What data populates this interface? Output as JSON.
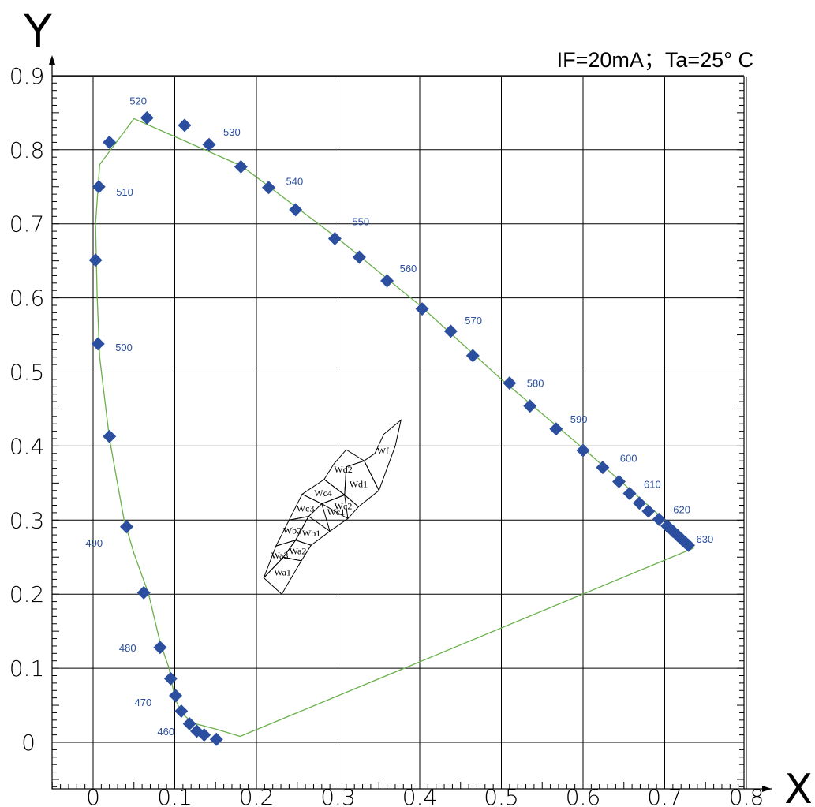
{
  "chart_data": {
    "type": "scatter",
    "title": "IF=20mA；Ta=25° C",
    "xlabel": "X",
    "ylabel": "Y",
    "xlim": [
      0,
      0.8
    ],
    "ylim": [
      0,
      0.9
    ],
    "x_ticks": [
      "0",
      "0.1",
      "0.2",
      "0.3",
      "0.4",
      "0.5",
      "0.6",
      "0.7",
      "0.8"
    ],
    "y_ticks": [
      "0",
      "0.1",
      "0.2",
      "0.3",
      "0.4",
      "0.5",
      "0.6",
      "0.7",
      "0.8",
      "0.9"
    ],
    "grid": true,
    "locus_points": [
      [
        0.151,
        0.004
      ],
      [
        0.136,
        0.01
      ],
      [
        0.127,
        0.015
      ],
      [
        0.118,
        0.025
      ],
      [
        0.108,
        0.042
      ],
      [
        0.101,
        0.063
      ],
      [
        0.095,
        0.086
      ],
      [
        0.082,
        0.128
      ],
      [
        0.062,
        0.202
      ],
      [
        0.041,
        0.291
      ],
      [
        0.02,
        0.413
      ],
      [
        0.006,
        0.538
      ],
      [
        0.003,
        0.651
      ],
      [
        0.007,
        0.75
      ],
      [
        0.02,
        0.81
      ],
      [
        0.066,
        0.843
      ],
      [
        0.112,
        0.833
      ],
      [
        0.142,
        0.807
      ],
      [
        0.181,
        0.777
      ],
      [
        0.215,
        0.749
      ],
      [
        0.248,
        0.719
      ],
      [
        0.296,
        0.68
      ],
      [
        0.326,
        0.655
      ],
      [
        0.36,
        0.623
      ],
      [
        0.403,
        0.585
      ],
      [
        0.438,
        0.555
      ],
      [
        0.465,
        0.522
      ],
      [
        0.51,
        0.485
      ],
      [
        0.535,
        0.454
      ],
      [
        0.567,
        0.423
      ],
      [
        0.6,
        0.394
      ],
      [
        0.624,
        0.371
      ],
      [
        0.644,
        0.352
      ],
      [
        0.657,
        0.336
      ],
      [
        0.669,
        0.323
      ],
      [
        0.68,
        0.312
      ],
      [
        0.693,
        0.301
      ],
      [
        0.703,
        0.292
      ],
      [
        0.71,
        0.285
      ],
      [
        0.716,
        0.279
      ],
      [
        0.721,
        0.274
      ],
      [
        0.725,
        0.27
      ],
      [
        0.729,
        0.266
      ]
    ],
    "wavelength_labels": [
      {
        "label": "460",
        "x": 0.127,
        "y": 0.015
      },
      {
        "label": "470",
        "x": 0.101,
        "y": 0.063
      },
      {
        "label": "480",
        "x": 0.082,
        "y": 0.128
      },
      {
        "label": "490",
        "x": 0.041,
        "y": 0.291
      },
      {
        "label": "500",
        "x": 0.006,
        "y": 0.538
      },
      {
        "label": "510",
        "x": 0.007,
        "y": 0.75
      },
      {
        "label": "520",
        "x": 0.066,
        "y": 0.843
      },
      {
        "label": "530",
        "x": 0.142,
        "y": 0.807
      },
      {
        "label": "540",
        "x": 0.215,
        "y": 0.749
      },
      {
        "label": "550",
        "x": 0.296,
        "y": 0.68
      },
      {
        "label": "560",
        "x": 0.36,
        "y": 0.623
      },
      {
        "label": "570",
        "x": 0.438,
        "y": 0.555
      },
      {
        "label": "580",
        "x": 0.51,
        "y": 0.485
      },
      {
        "label": "590",
        "x": 0.567,
        "y": 0.423
      },
      {
        "label": "600",
        "x": 0.624,
        "y": 0.371
      },
      {
        "label": "610",
        "x": 0.657,
        "y": 0.336
      },
      {
        "label": "620",
        "x": 0.693,
        "y": 0.301
      },
      {
        "label": "630",
        "x": 0.729,
        "y": 0.266
      }
    ],
    "spectral_locus_line": [
      [
        0.18,
        0.008
      ],
      [
        0.15,
        0.018
      ],
      [
        0.122,
        0.026
      ],
      [
        0.108,
        0.04
      ],
      [
        0.1,
        0.06
      ],
      [
        0.093,
        0.1
      ],
      [
        0.082,
        0.135
      ],
      [
        0.068,
        0.2
      ],
      [
        0.05,
        0.255
      ],
      [
        0.038,
        0.3
      ],
      [
        0.02,
        0.41
      ],
      [
        0.008,
        0.52
      ],
      [
        0.005,
        0.6
      ],
      [
        0.003,
        0.7
      ],
      [
        0.008,
        0.78
      ],
      [
        0.05,
        0.842
      ],
      [
        0.182,
        0.778
      ],
      [
        0.3,
        0.68
      ],
      [
        0.4,
        0.59
      ],
      [
        0.5,
        0.49
      ],
      [
        0.6,
        0.397
      ],
      [
        0.7,
        0.3
      ],
      [
        0.735,
        0.262
      ],
      [
        0.18,
        0.008
      ]
    ],
    "white_bins": [
      {
        "name": "Wa1",
        "polygon": [
          [
            0.209,
            0.222
          ],
          [
            0.233,
            0.25
          ],
          [
            0.255,
            0.245
          ],
          [
            0.231,
            0.2
          ]
        ]
      },
      {
        "name": "Wa2",
        "polygon": [
          [
            0.255,
            0.245
          ],
          [
            0.233,
            0.25
          ],
          [
            0.248,
            0.273
          ],
          [
            0.267,
            0.266
          ]
        ]
      },
      {
        "name": "Wa3",
        "polygon": [
          [
            0.233,
            0.25
          ],
          [
            0.209,
            0.222
          ],
          [
            0.224,
            0.265
          ],
          [
            0.248,
            0.273
          ]
        ]
      },
      {
        "name": "Wb1",
        "polygon": [
          [
            0.267,
            0.266
          ],
          [
            0.248,
            0.273
          ],
          [
            0.264,
            0.305
          ],
          [
            0.29,
            0.285
          ]
        ]
      },
      {
        "name": "Wb2",
        "polygon": [
          [
            0.248,
            0.273
          ],
          [
            0.224,
            0.265
          ],
          [
            0.24,
            0.3
          ],
          [
            0.264,
            0.305
          ]
        ]
      },
      {
        "name": "Wc1",
        "polygon": [
          [
            0.29,
            0.285
          ],
          [
            0.28,
            0.322
          ],
          [
            0.308,
            0.334
          ],
          [
            0.312,
            0.302
          ]
        ]
      },
      {
        "name": "Wc2",
        "polygon": [
          [
            0.28,
            0.322
          ],
          [
            0.312,
            0.302
          ],
          [
            0.325,
            0.318
          ],
          [
            0.308,
            0.334
          ]
        ]
      },
      {
        "name": "Wc3",
        "polygon": [
          [
            0.264,
            0.305
          ],
          [
            0.24,
            0.3
          ],
          [
            0.256,
            0.335
          ],
          [
            0.28,
            0.322
          ]
        ]
      },
      {
        "name": "Wc4",
        "polygon": [
          [
            0.28,
            0.322
          ],
          [
            0.256,
            0.335
          ],
          [
            0.283,
            0.355
          ],
          [
            0.308,
            0.334
          ]
        ]
      },
      {
        "name": "Wd1",
        "polygon": [
          [
            0.308,
            0.334
          ],
          [
            0.325,
            0.318
          ],
          [
            0.35,
            0.34
          ],
          [
            0.332,
            0.38
          ],
          [
            0.31,
            0.372
          ]
        ]
      },
      {
        "name": "Wd2",
        "polygon": [
          [
            0.283,
            0.355
          ],
          [
            0.308,
            0.334
          ],
          [
            0.31,
            0.372
          ],
          [
            0.332,
            0.38
          ],
          [
            0.31,
            0.395
          ],
          [
            0.295,
            0.376
          ]
        ]
      },
      {
        "name": "Wf",
        "polygon": [
          [
            0.332,
            0.38
          ],
          [
            0.35,
            0.34
          ],
          [
            0.37,
            0.4
          ],
          [
            0.377,
            0.435
          ],
          [
            0.356,
            0.416
          ],
          [
            0.345,
            0.39
          ]
        ]
      }
    ]
  },
  "colors": {
    "point": "#2b4f9e",
    "locus_line": "#6ab04c",
    "grid": "#000000",
    "bins": "#000000"
  }
}
